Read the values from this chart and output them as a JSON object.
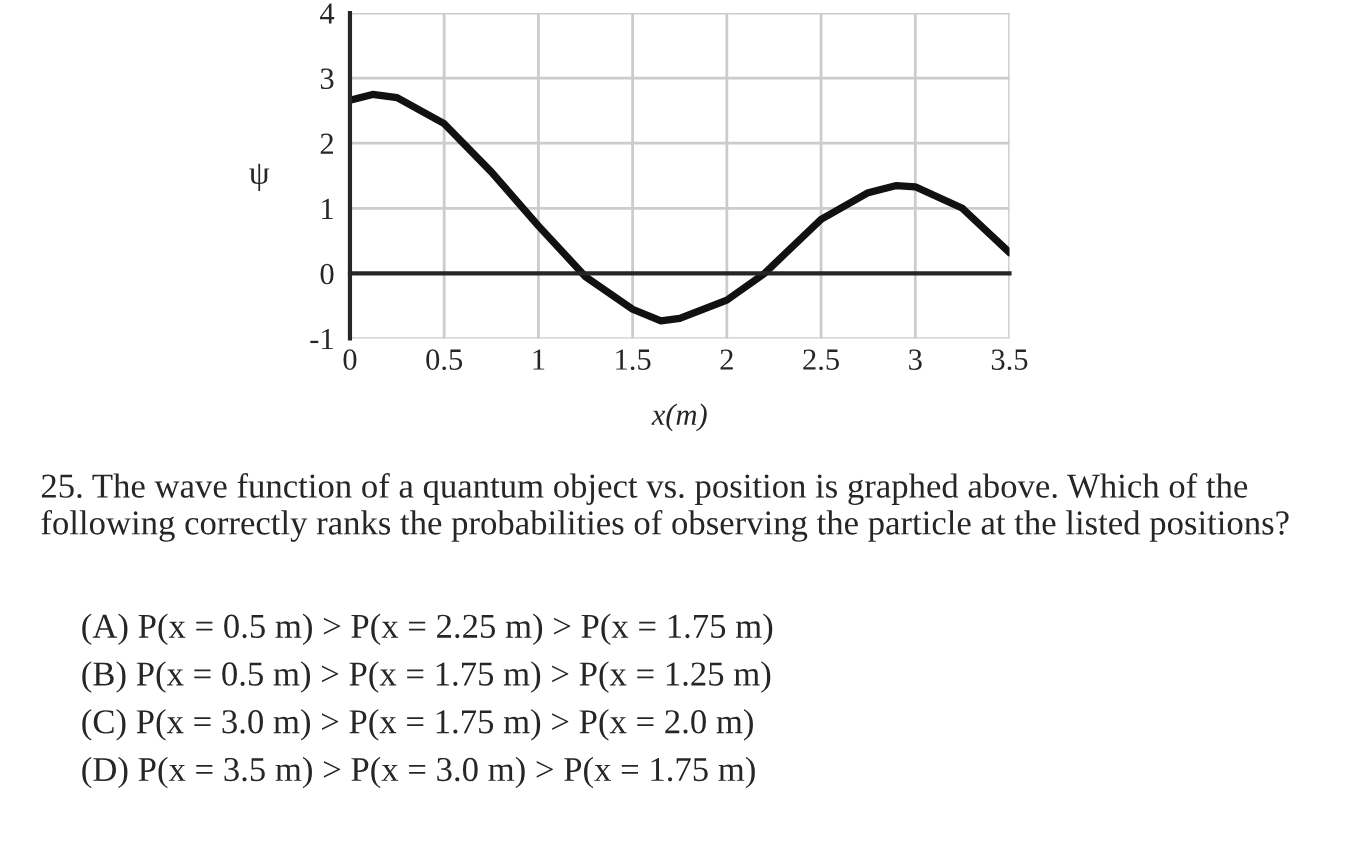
{
  "chart_data": {
    "type": "line",
    "xlabel": "x(m)",
    "ylabel": "ψ",
    "x": [
      0,
      0.12,
      0.25,
      0.5,
      0.75,
      1,
      1.25,
      1.5,
      1.65,
      1.75,
      2,
      2.2,
      2.25,
      2.5,
      2.75,
      2.9,
      3,
      3.25,
      3.5
    ],
    "series": [
      {
        "color": "#111111",
        "values": [
          2.66,
          2.75,
          2.7,
          2.3,
          1.56,
          0.73,
          -0.05,
          -0.55,
          -0.73,
          -0.69,
          -0.41,
          0,
          0.14,
          0.83,
          1.24,
          1.35,
          1.33,
          1.0,
          0.32
        ]
      }
    ],
    "xlim": [
      0,
      3.5
    ],
    "ylim": [
      -1,
      4
    ],
    "xticks": [
      0,
      0.5,
      1,
      1.5,
      2,
      2.5,
      3,
      3.5
    ],
    "yticks": [
      -1,
      0,
      1,
      2,
      3,
      4
    ],
    "grid": true,
    "marker": "none",
    "line_style": "solid",
    "annotations": [
      "25. The wave function of a quantum object vs. position is graphed above. Which of the following correctly ranks the probabilities of observing the particle at the listed positions?",
      "(A) P(x = 0.5 m) > P(x = 2.25 m) > P(x = 1.75 m)",
      "(B) P(x = 0.5 m) > P(x = 1.75 m) > P(x = 1.25 m)",
      "(C) P(x = 3.0 m) > P(x = 1.75 m) > P(x = 2.0 m)",
      "(D) P(x = 3.5 m) > P(x = 3.0 m) > P(x = 1.75 m)"
    ]
  }
}
